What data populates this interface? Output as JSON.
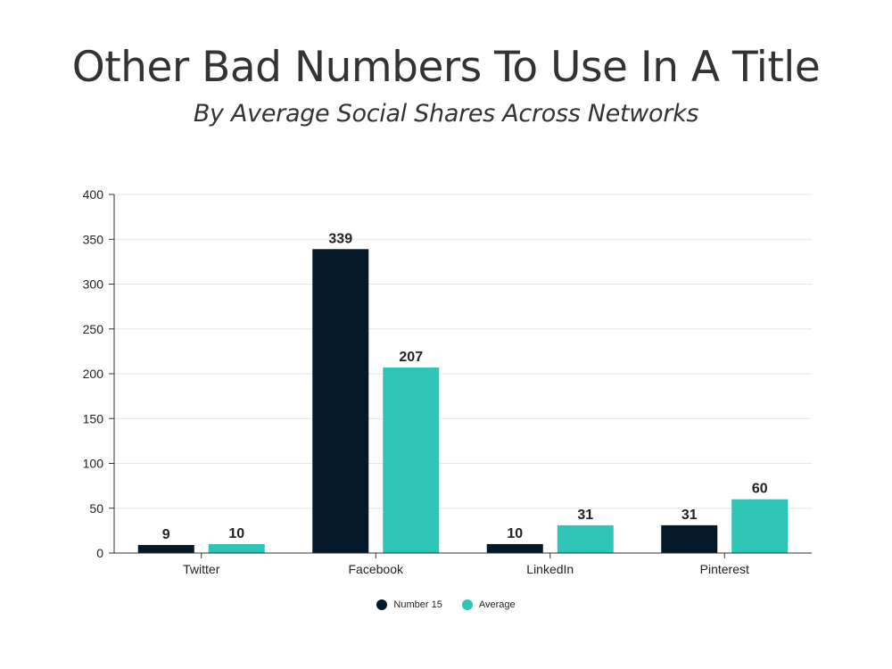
{
  "chart_data": {
    "type": "bar",
    "title": "Other Bad Numbers To Use In A Title",
    "subtitle": "By Average Social Shares Across Networks",
    "categories": [
      "Twitter",
      "Facebook",
      "LinkedIn",
      "Pinterest"
    ],
    "series": [
      {
        "name": "Number 15",
        "values": [
          9,
          339,
          10,
          31
        ],
        "color": "#03192a"
      },
      {
        "name": "Average",
        "values": [
          10,
          207,
          31,
          60
        ],
        "color": "#2ec5b6"
      }
    ],
    "ylim": [
      0,
      400
    ],
    "yticks": [
      0,
      50,
      100,
      150,
      200,
      250,
      300,
      350,
      400
    ],
    "xlabel": "",
    "ylabel": "",
    "grid": true,
    "legend_position": "bottom"
  }
}
